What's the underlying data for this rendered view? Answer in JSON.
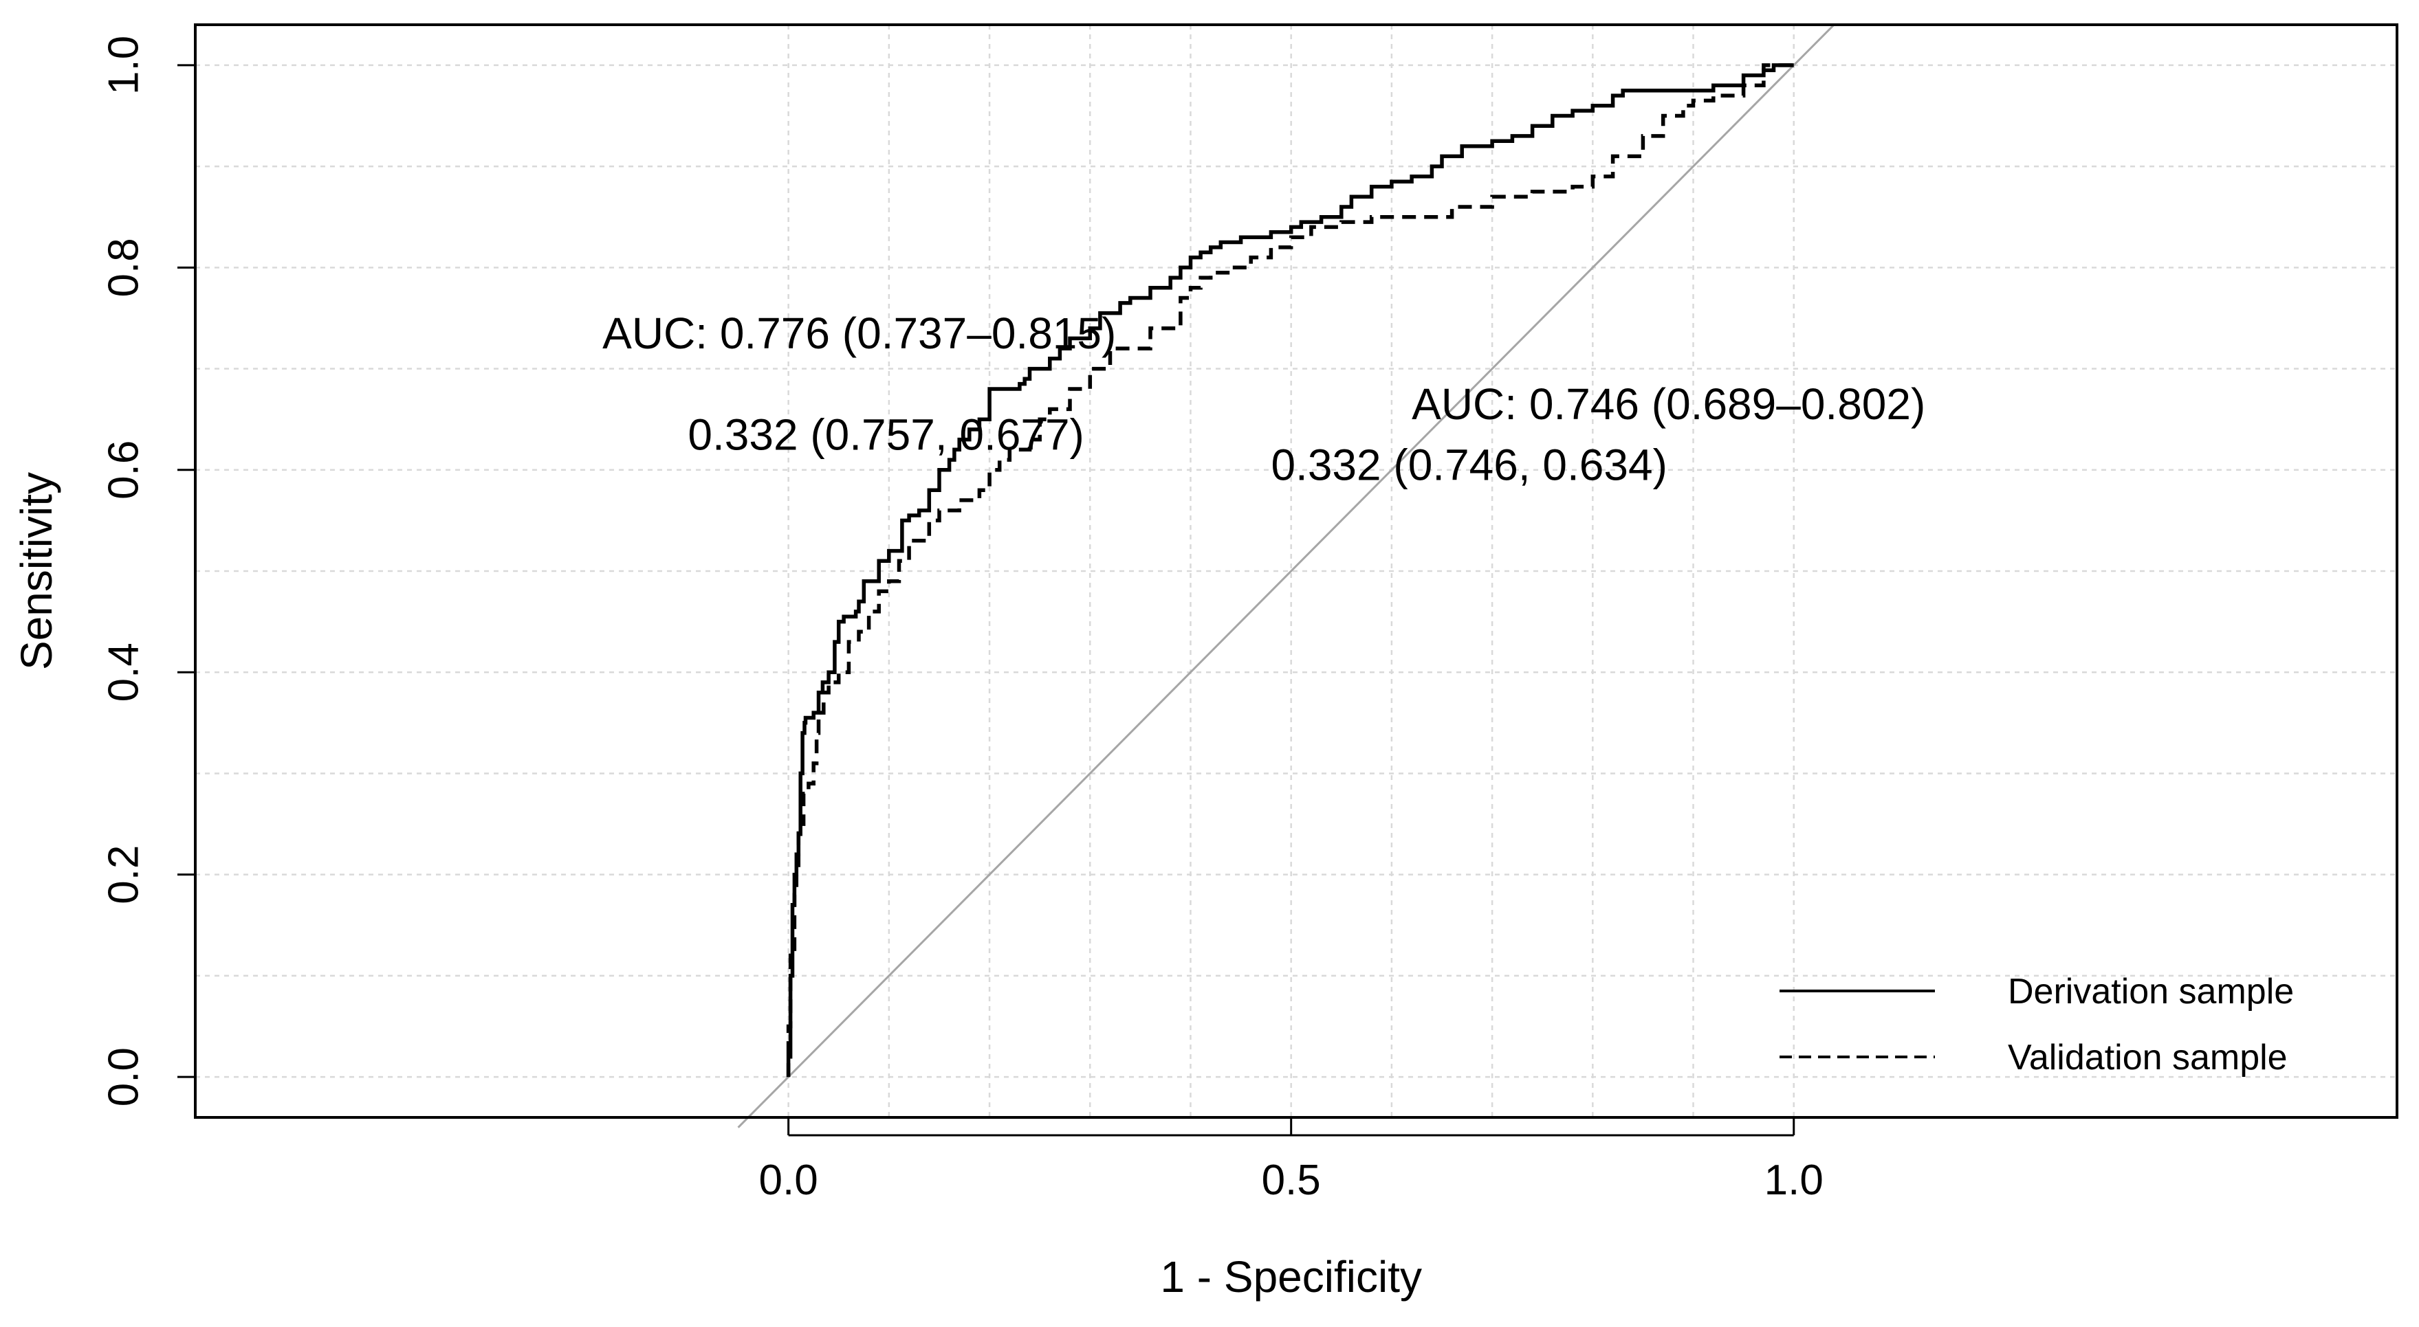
{
  "chart_data": {
    "type": "line",
    "title": "",
    "xlabel": "1 - Specificity",
    "ylabel": "Sensitivity",
    "xlim": [
      -0.59,
      1.6
    ],
    "ylim": [
      -0.04,
      1.04
    ],
    "xticks": [
      {
        "value": 0.0,
        "label": "0.0"
      },
      {
        "value": 0.5,
        "label": "0.5"
      },
      {
        "value": 1.0,
        "label": "1.0"
      }
    ],
    "yticks": [
      {
        "value": 0.0,
        "label": "0.0"
      },
      {
        "value": 0.2,
        "label": "0.2"
      },
      {
        "value": 0.4,
        "label": "0.4"
      },
      {
        "value": 0.6,
        "label": "0.6"
      },
      {
        "value": 0.8,
        "label": "0.8"
      },
      {
        "value": 1.0,
        "label": "1.0"
      }
    ],
    "grid": {
      "x": [
        0.0,
        0.1,
        0.2,
        0.3,
        0.4,
        0.5,
        0.6,
        0.7,
        0.8,
        0.9,
        1.0
      ],
      "y": [
        0.0,
        0.1,
        0.2,
        0.3,
        0.4,
        0.5,
        0.6,
        0.7,
        0.8,
        0.9,
        1.0
      ]
    },
    "reference_line": {
      "x": [
        -0.05,
        1.04
      ],
      "y": [
        -0.05,
        1.04
      ],
      "color": "#a6a6a6"
    },
    "series": [
      {
        "name": "Derivation sample",
        "style": "solid",
        "color": "#000000",
        "x": [
          0.0,
          0.002,
          0.004,
          0.006,
          0.008,
          0.01,
          0.012,
          0.014,
          0.016,
          0.017,
          0.02,
          0.025,
          0.03,
          0.034,
          0.04,
          0.046,
          0.05,
          0.055,
          0.06,
          0.067,
          0.07,
          0.075,
          0.09,
          0.1,
          0.113,
          0.12,
          0.13,
          0.14,
          0.15,
          0.16,
          0.165,
          0.17,
          0.18,
          0.19,
          0.2,
          0.21,
          0.22,
          0.23,
          0.235,
          0.24,
          0.26,
          0.27,
          0.28,
          0.3,
          0.31,
          0.33,
          0.34,
          0.36,
          0.38,
          0.39,
          0.4,
          0.41,
          0.42,
          0.43,
          0.45,
          0.48,
          0.5,
          0.51,
          0.53,
          0.55,
          0.56,
          0.58,
          0.6,
          0.62,
          0.64,
          0.65,
          0.67,
          0.7,
          0.72,
          0.74,
          0.76,
          0.78,
          0.8,
          0.82,
          0.83,
          0.85,
          0.87,
          0.89,
          0.92,
          0.95,
          0.97,
          0.98,
          1.0
        ],
        "y": [
          0.0,
          0.02,
          0.1,
          0.17,
          0.2,
          0.22,
          0.24,
          0.3,
          0.34,
          0.35,
          0.355,
          0.355,
          0.36,
          0.38,
          0.39,
          0.4,
          0.43,
          0.45,
          0.455,
          0.455,
          0.46,
          0.47,
          0.49,
          0.51,
          0.52,
          0.55,
          0.555,
          0.56,
          0.58,
          0.6,
          0.61,
          0.62,
          0.63,
          0.64,
          0.65,
          0.68,
          0.68,
          0.68,
          0.685,
          0.69,
          0.7,
          0.71,
          0.72,
          0.73,
          0.74,
          0.755,
          0.765,
          0.77,
          0.78,
          0.79,
          0.8,
          0.81,
          0.815,
          0.82,
          0.825,
          0.83,
          0.835,
          0.84,
          0.845,
          0.85,
          0.86,
          0.87,
          0.88,
          0.885,
          0.89,
          0.9,
          0.91,
          0.92,
          0.925,
          0.93,
          0.94,
          0.95,
          0.955,
          0.96,
          0.97,
          0.975,
          0.975,
          0.975,
          0.975,
          0.98,
          0.99,
          0.995,
          1.0
        ]
      },
      {
        "name": "Validation sample",
        "style": "dashed",
        "color": "#000000",
        "x": [
          0.0,
          0.002,
          0.006,
          0.008,
          0.01,
          0.015,
          0.02,
          0.025,
          0.028,
          0.03,
          0.035,
          0.04,
          0.045,
          0.05,
          0.06,
          0.07,
          0.08,
          0.09,
          0.1,
          0.11,
          0.12,
          0.14,
          0.15,
          0.17,
          0.19,
          0.2,
          0.21,
          0.22,
          0.24,
          0.25,
          0.26,
          0.28,
          0.3,
          0.32,
          0.33,
          0.36,
          0.39,
          0.4,
          0.41,
          0.42,
          0.44,
          0.46,
          0.48,
          0.5,
          0.52,
          0.55,
          0.58,
          0.62,
          0.66,
          0.7,
          0.74,
          0.78,
          0.8,
          0.82,
          0.85,
          0.87,
          0.89,
          0.9,
          0.92,
          0.95,
          0.97,
          1.0
        ],
        "y": [
          0.0,
          0.05,
          0.12,
          0.18,
          0.2,
          0.25,
          0.28,
          0.29,
          0.31,
          0.34,
          0.36,
          0.38,
          0.39,
          0.39,
          0.4,
          0.43,
          0.44,
          0.46,
          0.48,
          0.49,
          0.51,
          0.53,
          0.55,
          0.56,
          0.57,
          0.58,
          0.6,
          0.61,
          0.62,
          0.63,
          0.65,
          0.66,
          0.68,
          0.7,
          0.72,
          0.72,
          0.74,
          0.77,
          0.78,
          0.79,
          0.795,
          0.8,
          0.81,
          0.82,
          0.83,
          0.84,
          0.845,
          0.85,
          0.85,
          0.86,
          0.87,
          0.875,
          0.88,
          0.89,
          0.91,
          0.93,
          0.95,
          0.96,
          0.965,
          0.97,
          0.98,
          1.0
        ]
      }
    ],
    "annotations": [
      {
        "text": "AUC: 0.776 (0.737–0.815)",
        "x": -0.185,
        "y": 0.72,
        "bold_part": true
      },
      {
        "text": "0.332 (0.757, 0.677)",
        "x": -0.1,
        "y": 0.62,
        "bold_part": false
      },
      {
        "text": "AUC: 0.746 (0.689–0.802)",
        "x": 0.62,
        "y": 0.65,
        "bold_part": true
      },
      {
        "text": "0.332 (0.746, 0.634)",
        "x": 0.48,
        "y": 0.59,
        "bold_part": false
      }
    ],
    "legend": {
      "position": "bottom-right",
      "entries": [
        {
          "label": "Derivation sample",
          "style": "solid"
        },
        {
          "label": "Validation sample",
          "style": "dashed"
        }
      ]
    }
  }
}
